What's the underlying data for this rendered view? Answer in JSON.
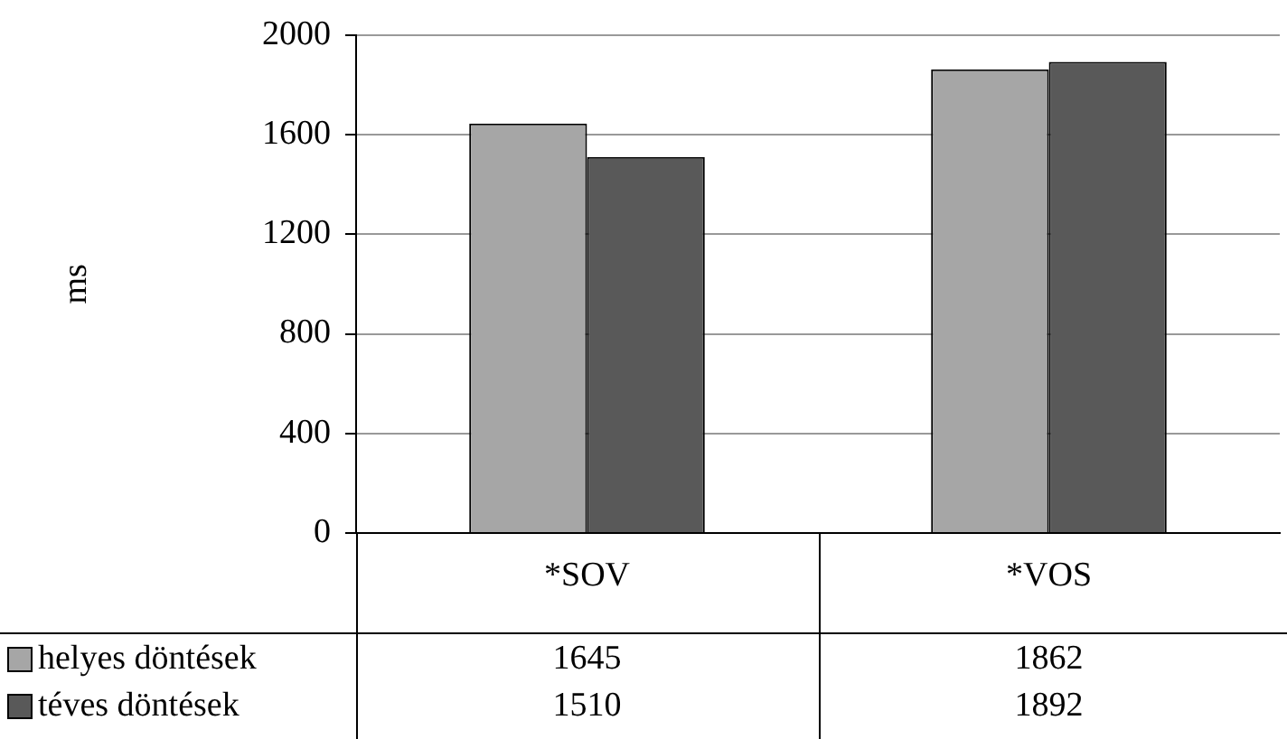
{
  "chart_data": {
    "type": "bar",
    "ylabel": "ms",
    "categories": [
      "*SOV",
      "*VOS"
    ],
    "series": [
      {
        "name": "helyes döntések",
        "color": "#a6a6a6",
        "values": [
          1645,
          1862
        ]
      },
      {
        "name": "téves döntések",
        "color": "#595959",
        "values": [
          1510,
          1892
        ]
      }
    ],
    "ylim": [
      0,
      2000
    ],
    "yticks": [
      0,
      400,
      800,
      1200,
      1600,
      2000
    ],
    "grid": "y",
    "legend": "bottom",
    "data_labels": true
  }
}
